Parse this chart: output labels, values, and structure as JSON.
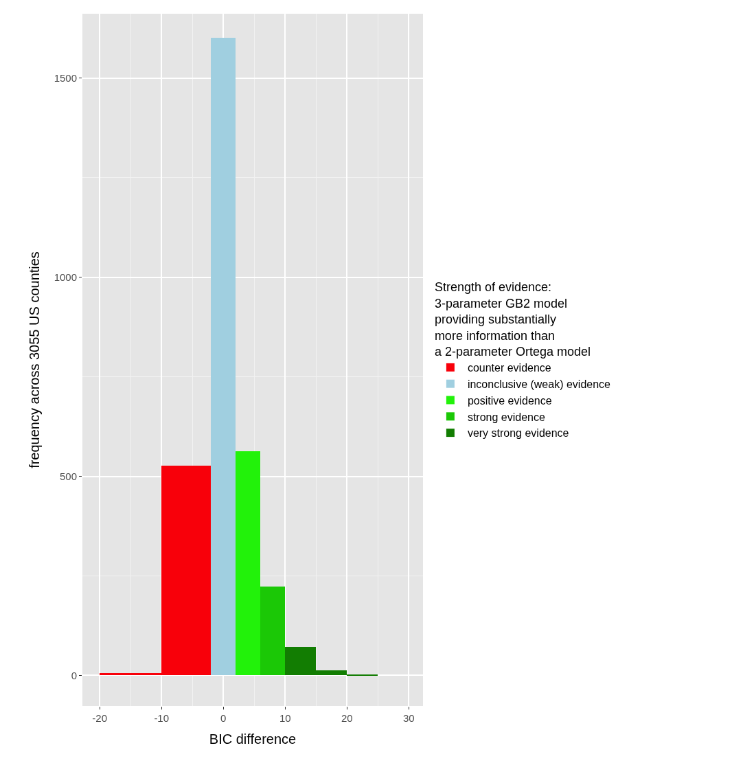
{
  "chart_data": {
    "type": "histogram",
    "xlabel": "BIC difference",
    "ylabel": "frequency across 3055 US counties",
    "legend_title": "Strength of evidence:\n3-parameter GB2 model\nproviding substantially\nmore information than\na 2-parameter Ortega model",
    "bins": [
      -20,
      -10,
      -2,
      2,
      6,
      10,
      15,
      20,
      25
    ],
    "series": [
      {
        "name": "counter evidence",
        "color": "#f8000a",
        "values": [
          5,
          527,
          null,
          null,
          null,
          null,
          null,
          null
        ]
      },
      {
        "name": "inconclusive (weak) evidence",
        "color": "#a0cfe0",
        "values": [
          null,
          null,
          1601,
          null,
          null,
          null,
          null,
          null
        ]
      },
      {
        "name": "positive evidence",
        "color": "#22f20a",
        "values": [
          null,
          null,
          null,
          563,
          null,
          null,
          null,
          null
        ]
      },
      {
        "name": "strong evidence",
        "color": "#1bc806",
        "values": [
          null,
          null,
          null,
          null,
          224,
          null,
          null,
          null
        ]
      },
      {
        "name": "very strong evidence",
        "color": "#127d02",
        "values": [
          null,
          null,
          null,
          null,
          null,
          72,
          12,
          3
        ]
      }
    ],
    "xlim": [
      -22.8,
      32.3
    ],
    "xticks": [
      -20,
      -10,
      0,
      10,
      20,
      30
    ],
    "ylim": [
      -77,
      1662
    ],
    "yticks": [
      0,
      500,
      1000,
      1500
    ],
    "grid": true,
    "legend": "right"
  }
}
